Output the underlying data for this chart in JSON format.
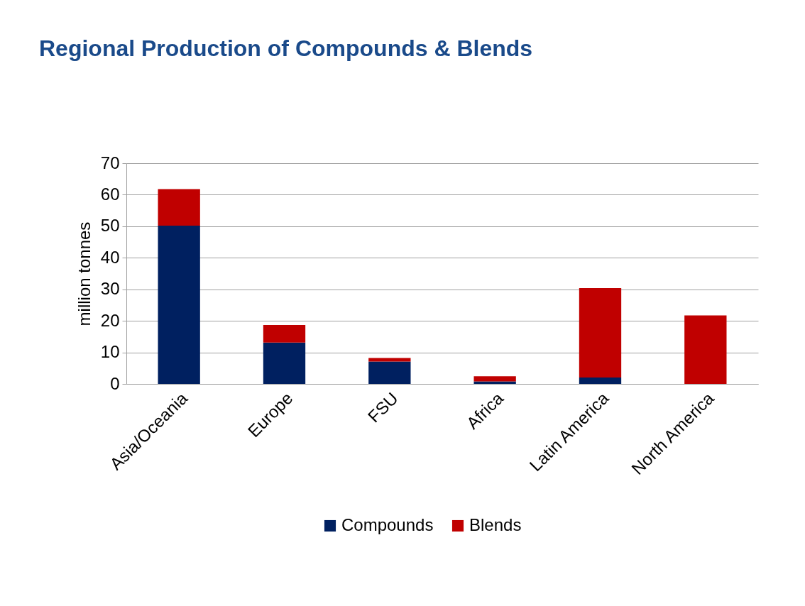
{
  "chart_data": {
    "type": "bar",
    "title": "Regional Production of Compounds & Blends",
    "ylabel": "million tonnes",
    "categories": [
      "Asia/Oceania",
      "Europe",
      "FSU",
      "Africa",
      "Latin America",
      "North America"
    ],
    "series": [
      {
        "name": "Compounds",
        "color": "#002060",
        "values": [
          50.2,
          13.1,
          7.1,
          0.8,
          2.0,
          0
        ]
      },
      {
        "name": "Blends",
        "color": "#c00000",
        "values": [
          11.6,
          5.6,
          1.1,
          1.6,
          28.4,
          21.7
        ]
      }
    ],
    "stacked": true,
    "ylim": [
      0,
      70
    ],
    "yticks": [
      0,
      10,
      20,
      30,
      40,
      50,
      60,
      70
    ],
    "grid": "y",
    "legend": "bottom"
  }
}
